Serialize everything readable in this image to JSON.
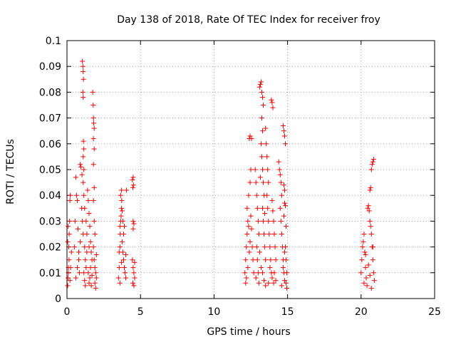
{
  "chart_data": {
    "type": "scatter",
    "title": "Day 138 of 2018, Rate Of TEC Index for receiver froy",
    "xlabel": "GPS time / hours",
    "ylabel": "ROTI / TECUs",
    "xlim": [
      0,
      25
    ],
    "ylim": [
      0,
      0.1
    ],
    "x_ticks": [
      "0",
      "5",
      "10",
      "15",
      "20",
      "25"
    ],
    "y_ticks": [
      "0",
      "0.01",
      "0.02",
      "0.03",
      "0.04",
      "0.05",
      "0.06",
      "0.07",
      "0.08",
      "0.09",
      "0.1"
    ],
    "x_tick_values": [
      0,
      5,
      10,
      15,
      20,
      25
    ],
    "y_tick_values": [
      0,
      0.01,
      0.02,
      0.03,
      0.04,
      0.05,
      0.06,
      0.07,
      0.08,
      0.09,
      0.1
    ],
    "grid": true,
    "marker": "+",
    "color": "#ff0000",
    "series": [
      {
        "name": "ROTI",
        "points": [
          [
            0.05,
            0.005
          ],
          [
            0.08,
            0.008
          ],
          [
            0.1,
            0.012
          ],
          [
            0.12,
            0.02
          ],
          [
            0.15,
            0.025
          ],
          [
            0.18,
            0.03
          ],
          [
            0.2,
            0.038
          ],
          [
            0.22,
            0.04
          ],
          [
            0.1,
            0.01
          ],
          [
            0.14,
            0.015
          ],
          [
            0.2,
            0.007
          ],
          [
            0.25,
            0.012
          ],
          [
            0.3,
            0.018
          ],
          [
            0.05,
            0.022
          ],
          [
            0.08,
            0.028
          ],
          [
            0.5,
            0.02
          ],
          [
            0.55,
            0.03
          ],
          [
            0.6,
            0.047
          ],
          [
            0.65,
            0.04
          ],
          [
            0.7,
            0.038
          ],
          [
            0.75,
            0.027
          ],
          [
            0.8,
            0.015
          ],
          [
            0.85,
            0.01
          ],
          [
            0.9,
            0.052
          ],
          [
            0.95,
            0.051
          ],
          [
            1.0,
            0.035
          ],
          [
            1.02,
            0.048
          ],
          [
            1.05,
            0.03
          ],
          [
            0.6,
            0.008
          ],
          [
            0.7,
            0.012
          ],
          [
            0.8,
            0.018
          ],
          [
            0.9,
            0.022
          ],
          [
            1.05,
            0.092
          ],
          [
            1.08,
            0.09
          ],
          [
            1.1,
            0.088
          ],
          [
            1.12,
            0.085
          ],
          [
            1.08,
            0.08
          ],
          [
            1.1,
            0.078
          ],
          [
            1.12,
            0.061
          ],
          [
            1.15,
            0.058
          ],
          [
            1.1,
            0.055
          ],
          [
            1.15,
            0.05
          ],
          [
            1.1,
            0.045
          ],
          [
            1.15,
            0.04
          ],
          [
            1.2,
            0.035
          ],
          [
            1.1,
            0.025
          ],
          [
            1.2,
            0.02
          ],
          [
            1.25,
            0.015
          ],
          [
            1.3,
            0.012
          ],
          [
            1.15,
            0.01
          ],
          [
            1.2,
            0.007
          ],
          [
            1.25,
            0.005
          ],
          [
            1.3,
            0.03
          ],
          [
            1.35,
            0.025
          ],
          [
            1.35,
            0.018
          ],
          [
            1.4,
            0.042
          ],
          [
            1.45,
            0.038
          ],
          [
            1.5,
            0.033
          ],
          [
            1.55,
            0.028
          ],
          [
            1.6,
            0.022
          ],
          [
            1.65,
            0.018
          ],
          [
            1.7,
            0.015
          ],
          [
            1.45,
            0.01
          ],
          [
            1.5,
            0.006
          ],
          [
            1.55,
            0.008
          ],
          [
            1.6,
            0.012
          ],
          [
            1.65,
            0.005
          ],
          [
            1.7,
            0.009
          ],
          [
            1.5,
            0.02
          ],
          [
            1.75,
            0.08
          ],
          [
            1.78,
            0.075
          ],
          [
            1.8,
            0.07
          ],
          [
            1.82,
            0.068
          ],
          [
            1.85,
            0.066
          ],
          [
            1.8,
            0.062
          ],
          [
            1.85,
            0.058
          ],
          [
            1.8,
            0.052
          ],
          [
            1.85,
            0.043
          ],
          [
            1.8,
            0.038
          ],
          [
            1.85,
            0.03
          ],
          [
            1.9,
            0.025
          ],
          [
            1.8,
            0.02
          ],
          [
            1.85,
            0.015
          ],
          [
            1.9,
            0.012
          ],
          [
            1.95,
            0.01
          ],
          [
            2.0,
            0.008
          ],
          [
            1.9,
            0.006
          ],
          [
            1.95,
            0.004
          ],
          [
            2.0,
            0.017
          ],
          [
            3.5,
            0.008
          ],
          [
            3.55,
            0.012
          ],
          [
            3.6,
            0.02
          ],
          [
            3.62,
            0.025
          ],
          [
            3.65,
            0.03
          ],
          [
            3.6,
            0.028
          ],
          [
            3.68,
            0.032
          ],
          [
            3.7,
            0.035
          ],
          [
            3.65,
            0.04
          ],
          [
            3.7,
            0.042
          ],
          [
            3.72,
            0.038
          ],
          [
            3.75,
            0.034
          ],
          [
            3.8,
            0.03
          ],
          [
            3.85,
            0.025
          ],
          [
            3.75,
            0.022
          ],
          [
            3.8,
            0.018
          ],
          [
            3.85,
            0.015
          ],
          [
            3.9,
            0.012
          ],
          [
            3.95,
            0.01
          ],
          [
            4.0,
            0.008
          ],
          [
            4.05,
            0.042
          ],
          [
            3.6,
            0.006
          ],
          [
            3.7,
            0.014
          ],
          [
            3.9,
            0.028
          ],
          [
            4.0,
            0.017
          ],
          [
            3.55,
            0.018
          ],
          [
            4.45,
            0.046
          ],
          [
            4.5,
            0.047
          ],
          [
            4.52,
            0.044
          ],
          [
            4.48,
            0.043
          ],
          [
            4.5,
            0.03
          ],
          [
            4.55,
            0.029
          ],
          [
            4.5,
            0.027
          ],
          [
            4.45,
            0.015
          ],
          [
            4.5,
            0.012
          ],
          [
            4.55,
            0.01
          ],
          [
            4.6,
            0.008
          ],
          [
            4.48,
            0.006
          ],
          [
            4.55,
            0.005
          ],
          [
            4.6,
            0.014
          ],
          [
            12.1,
            0.01
          ],
          [
            12.15,
            0.015
          ],
          [
            12.2,
            0.02
          ],
          [
            12.25,
            0.025
          ],
          [
            12.3,
            0.03
          ],
          [
            12.35,
            0.028
          ],
          [
            12.2,
            0.008
          ],
          [
            12.3,
            0.012
          ],
          [
            12.4,
            0.018
          ],
          [
            12.45,
            0.022
          ],
          [
            12.15,
            0.006
          ],
          [
            12.25,
            0.035
          ],
          [
            12.35,
            0.04
          ],
          [
            12.45,
            0.045
          ],
          [
            12.5,
            0.05
          ],
          [
            12.4,
            0.062
          ],
          [
            12.45,
            0.063
          ],
          [
            12.55,
            0.062
          ],
          [
            12.5,
            0.032
          ],
          [
            12.55,
            0.027
          ],
          [
            12.6,
            0.02
          ],
          [
            12.65,
            0.015
          ],
          [
            12.7,
            0.01
          ],
          [
            12.8,
            0.05
          ],
          [
            12.85,
            0.045
          ],
          [
            12.9,
            0.04
          ],
          [
            12.95,
            0.035
          ],
          [
            13.0,
            0.03
          ],
          [
            13.05,
            0.025
          ],
          [
            12.9,
            0.02
          ],
          [
            12.95,
            0.015
          ],
          [
            13.0,
            0.01
          ],
          [
            13.05,
            0.006
          ],
          [
            12.85,
            0.008
          ],
          [
            13.1,
            0.018
          ],
          [
            13.1,
            0.082
          ],
          [
            13.15,
            0.083
          ],
          [
            13.2,
            0.084
          ],
          [
            13.25,
            0.08
          ],
          [
            13.3,
            0.078
          ],
          [
            13.35,
            0.075
          ],
          [
            13.25,
            0.07
          ],
          [
            13.3,
            0.065
          ],
          [
            13.2,
            0.06
          ],
          [
            13.25,
            0.055
          ],
          [
            13.3,
            0.05
          ],
          [
            13.35,
            0.045
          ],
          [
            13.4,
            0.04
          ],
          [
            13.3,
            0.035
          ],
          [
            13.35,
            0.03
          ],
          [
            13.4,
            0.025
          ],
          [
            13.45,
            0.02
          ],
          [
            13.5,
            0.015
          ],
          [
            13.3,
            0.01
          ],
          [
            13.4,
            0.007
          ],
          [
            13.5,
            0.005
          ],
          [
            13.2,
            0.012
          ],
          [
            13.45,
            0.033
          ],
          [
            13.15,
            0.047
          ],
          [
            13.5,
            0.066
          ],
          [
            13.55,
            0.06
          ],
          [
            13.6,
            0.055
          ],
          [
            13.65,
            0.05
          ],
          [
            13.7,
            0.045
          ],
          [
            13.6,
            0.04
          ],
          [
            13.65,
            0.035
          ],
          [
            13.7,
            0.03
          ],
          [
            13.75,
            0.025
          ],
          [
            13.8,
            0.02
          ],
          [
            13.85,
            0.015
          ],
          [
            13.9,
            0.01
          ],
          [
            13.95,
            0.008
          ],
          [
            13.7,
            0.006
          ],
          [
            13.8,
            0.012
          ],
          [
            13.9,
            0.077
          ],
          [
            13.95,
            0.076
          ],
          [
            14.0,
            0.074
          ],
          [
            13.95,
            0.038
          ],
          [
            14.0,
            0.034
          ],
          [
            14.05,
            0.03
          ],
          [
            14.1,
            0.025
          ],
          [
            14.15,
            0.02
          ],
          [
            14.2,
            0.015
          ],
          [
            14.1,
            0.01
          ],
          [
            14.2,
            0.007
          ],
          [
            14.05,
            0.006
          ],
          [
            14.4,
            0.053
          ],
          [
            14.45,
            0.05
          ],
          [
            14.5,
            0.048
          ],
          [
            14.55,
            0.045
          ],
          [
            14.6,
            0.04
          ],
          [
            14.5,
            0.035
          ],
          [
            14.55,
            0.03
          ],
          [
            14.6,
            0.025
          ],
          [
            14.65,
            0.02
          ],
          [
            14.7,
            0.015
          ],
          [
            14.75,
            0.01
          ],
          [
            14.8,
            0.007
          ],
          [
            14.6,
            0.005
          ],
          [
            14.7,
            0.012
          ],
          [
            14.75,
            0.032
          ],
          [
            14.8,
            0.037
          ],
          [
            14.7,
            0.067
          ],
          [
            14.75,
            0.065
          ],
          [
            14.8,
            0.063
          ],
          [
            14.85,
            0.06
          ],
          [
            14.75,
            0.044
          ],
          [
            14.8,
            0.042
          ],
          [
            14.85,
            0.036
          ],
          [
            14.9,
            0.028
          ],
          [
            14.85,
            0.02
          ],
          [
            14.9,
            0.015
          ],
          [
            14.95,
            0.01
          ],
          [
            14.9,
            0.006
          ],
          [
            14.95,
            0.004
          ],
          [
            14.8,
            0.018
          ],
          [
            20.0,
            0.01
          ],
          [
            20.05,
            0.015
          ],
          [
            20.1,
            0.02
          ],
          [
            20.15,
            0.022
          ],
          [
            20.2,
            0.025
          ],
          [
            20.25,
            0.018
          ],
          [
            20.3,
            0.012
          ],
          [
            20.35,
            0.008
          ],
          [
            20.4,
            0.005
          ],
          [
            20.45,
            0.035
          ],
          [
            20.5,
            0.036
          ],
          [
            20.55,
            0.034
          ],
          [
            20.6,
            0.03
          ],
          [
            20.65,
            0.028
          ],
          [
            20.7,
            0.025
          ],
          [
            20.75,
            0.02
          ],
          [
            20.8,
            0.015
          ],
          [
            20.85,
            0.01
          ],
          [
            20.9,
            0.007
          ],
          [
            20.6,
            0.042
          ],
          [
            20.65,
            0.043
          ],
          [
            20.7,
            0.05
          ],
          [
            20.75,
            0.052
          ],
          [
            20.8,
            0.053
          ],
          [
            20.85,
            0.054
          ],
          [
            20.2,
            0.006
          ],
          [
            20.3,
            0.017
          ],
          [
            20.5,
            0.013
          ],
          [
            20.6,
            0.009
          ],
          [
            20.7,
            0.004
          ],
          [
            20.8,
            0.02
          ]
        ]
      }
    ]
  }
}
